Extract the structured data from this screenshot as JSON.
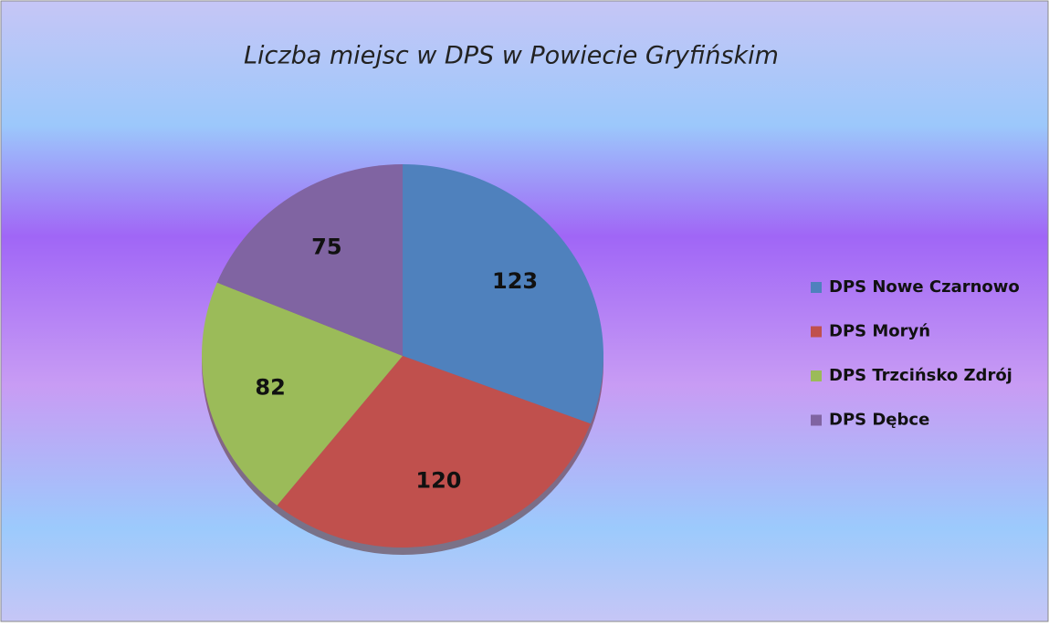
{
  "chart_data": {
    "type": "pie",
    "title": "Liczba miejsc w DPS w Powiecie Gryfińskim",
    "categories": [
      "DPS Nowe Czarnowo",
      "DPS Moryń",
      "DPS Trzcińsko Zdrój",
      "DPS Dębce"
    ],
    "values": [
      123,
      120,
      82,
      75
    ],
    "colors": [
      "#4f81bd",
      "#c0504d",
      "#9bbb59",
      "#8064a2"
    ],
    "legend": "right"
  }
}
